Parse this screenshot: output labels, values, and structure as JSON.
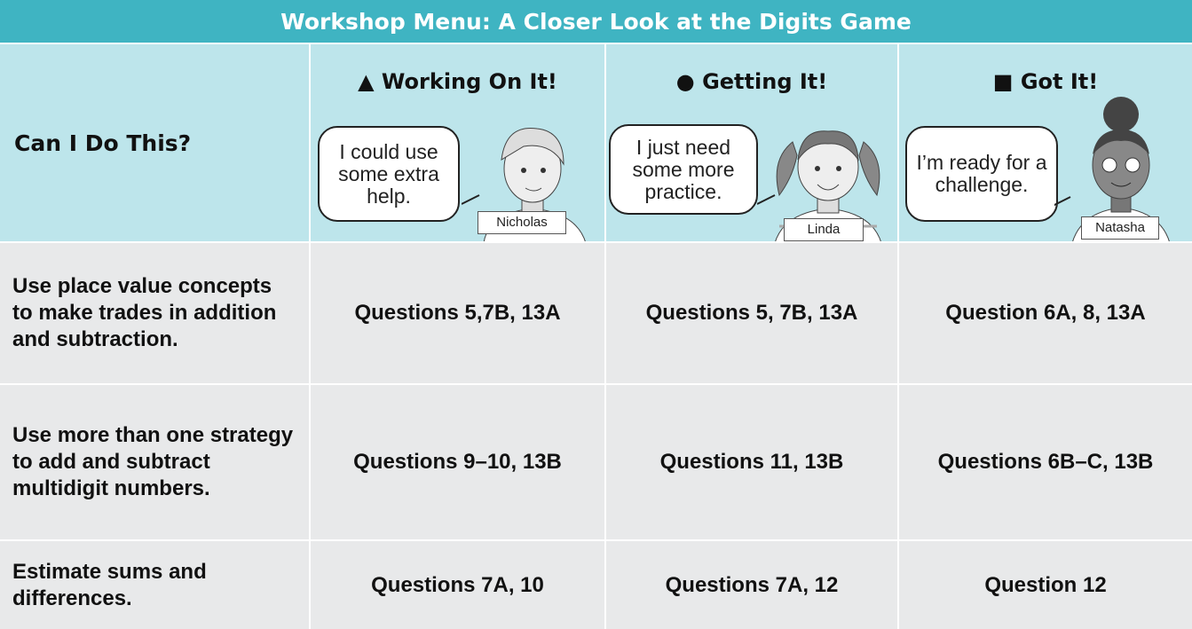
{
  "title": "Workshop Menu: A Closer Look at the Digits Game",
  "header": {
    "question": "Can I Do This?",
    "levels": [
      {
        "title": "▲ Working On It!",
        "speech": "I could use some extra help.",
        "name": "Nicholas"
      },
      {
        "title": "● Getting It!",
        "speech": "I just need some more practice.",
        "name": "Linda"
      },
      {
        "title": "■ Got It!",
        "speech": "I’m ready for a challenge.",
        "name": "Natasha"
      }
    ]
  },
  "table": {
    "rows": [
      [
        "Use place value concepts to make trades in addition and subtraction.",
        "Questions 5,7B, 13A",
        "Questions 5, 7B, 13A",
        "Question 6A, 8, 13A"
      ],
      [
        "Use more than one strategy to add and subtract multidigit numbers.",
        "Questions 9–10, 13B",
        "Questions 11, 13B",
        "Questions 6B–C, 13B"
      ],
      [
        "Estimate sums and differences.",
        "Questions 7A, 10",
        "Questions 7A, 12",
        "Question 12"
      ]
    ]
  }
}
